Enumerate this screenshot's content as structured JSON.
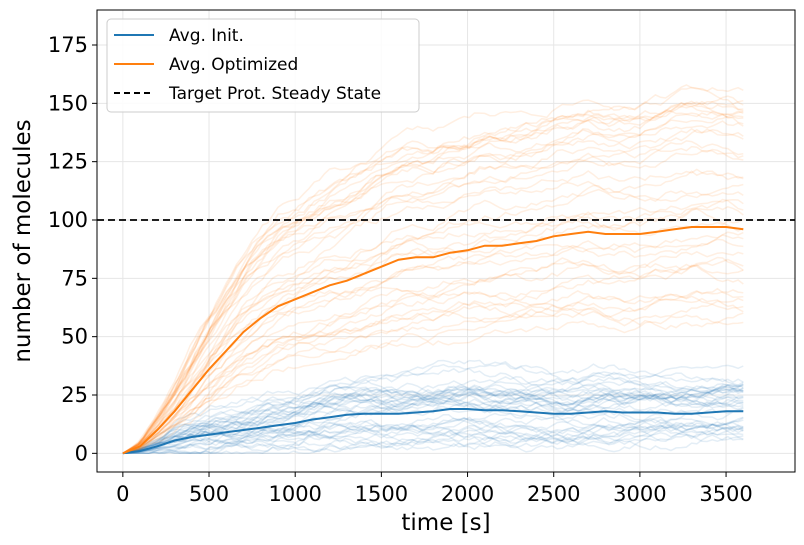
{
  "chart_data": {
    "type": "line",
    "title": "",
    "xlabel": "time [s]",
    "ylabel": "number of molecules",
    "xlim": [
      -150,
      3900
    ],
    "ylim": [
      -8,
      190
    ],
    "xticks": [
      0,
      500,
      1000,
      1500,
      2000,
      2500,
      3000,
      3500
    ],
    "yticks": [
      0,
      25,
      50,
      75,
      100,
      125,
      150,
      175
    ],
    "grid": true,
    "legend_position": "top-left",
    "colors": {
      "init": "#1f77b4",
      "optimized": "#ff7f0e",
      "target": "#000000"
    },
    "series": [
      {
        "name": "Avg. Init.",
        "color": "#1f77b4",
        "x": [
          0,
          100,
          200,
          300,
          400,
          500,
          600,
          700,
          800,
          900,
          1000,
          1100,
          1200,
          1300,
          1400,
          1500,
          1600,
          1700,
          1800,
          1900,
          2000,
          2100,
          2200,
          2300,
          2400,
          2500,
          2600,
          2700,
          2800,
          2900,
          3000,
          3100,
          3200,
          3300,
          3400,
          3500,
          3600
        ],
        "y": [
          0,
          1,
          3,
          5.5,
          7,
          8,
          9,
          10,
          11,
          12,
          13,
          14.5,
          15.5,
          16.5,
          17,
          17,
          17,
          17.5,
          18,
          19,
          19,
          18.5,
          18.5,
          18,
          17.5,
          17,
          17,
          17.5,
          18,
          17.5,
          17.5,
          17.5,
          17,
          17,
          17.5,
          18,
          18
        ]
      },
      {
        "name": "Avg. Optimized",
        "color": "#ff7f0e",
        "x": [
          0,
          100,
          200,
          300,
          400,
          500,
          600,
          700,
          800,
          900,
          1000,
          1100,
          1200,
          1300,
          1400,
          1500,
          1600,
          1700,
          1800,
          1900,
          2000,
          2100,
          2200,
          2300,
          2400,
          2500,
          2600,
          2700,
          2800,
          2900,
          3000,
          3100,
          3200,
          3300,
          3400,
          3500,
          3600
        ],
        "y": [
          0,
          3,
          10,
          18,
          27,
          36,
          44,
          52,
          58,
          63,
          66,
          69,
          72,
          74,
          77,
          80,
          83,
          84,
          84,
          86,
          87,
          89,
          89,
          90,
          91,
          93,
          94,
          95,
          94,
          94,
          94,
          95,
          96,
          97,
          97,
          97,
          96
        ]
      },
      {
        "name": "Target Prot. Steady State",
        "color": "#000000",
        "style": "dashed",
        "y_constant": 100
      }
    ]
  }
}
